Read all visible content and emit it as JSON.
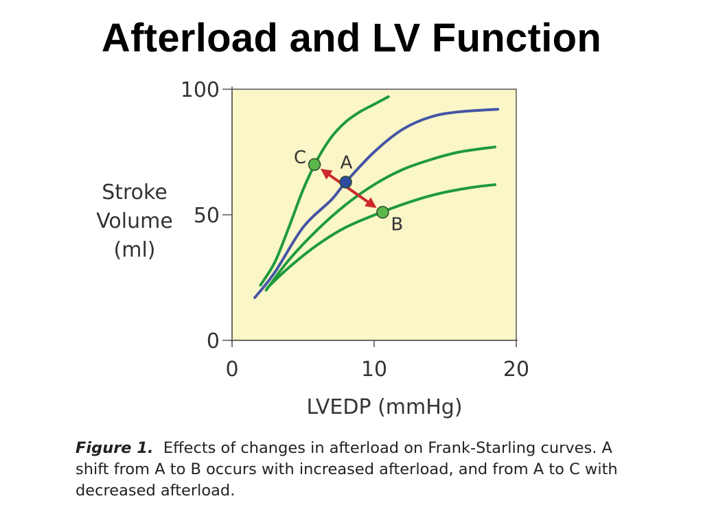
{
  "slide_title": "Afterload and LV Function",
  "chart_data": {
    "type": "line",
    "xlabel": "LVEDP (mmHg)",
    "ylabel": [
      "Stroke",
      "Volume",
      "(ml)"
    ],
    "xlim": [
      0,
      20
    ],
    "ylim": [
      0,
      100
    ],
    "x_ticks": [
      0,
      10,
      20
    ],
    "y_ticks": [
      0,
      50,
      100
    ],
    "grid": false,
    "plot_background": "#faf6c8",
    "series": [
      {
        "color": "#1e9a3c",
        "points": [
          [
            2.0,
            22
          ],
          [
            3.0,
            31
          ],
          [
            4.0,
            45
          ],
          [
            5.0,
            60
          ],
          [
            6.0,
            72
          ],
          [
            7.0,
            81
          ],
          [
            8.0,
            87
          ],
          [
            9.0,
            91
          ],
          [
            10.0,
            94
          ],
          [
            11.0,
            97
          ]
        ]
      },
      {
        "color": "#4455a5",
        "points": [
          [
            1.6,
            17
          ],
          [
            3.0,
            27
          ],
          [
            5.0,
            45
          ],
          [
            7.0,
            56
          ],
          [
            8.0,
            63
          ],
          [
            10.0,
            75
          ],
          [
            12.0,
            84
          ],
          [
            14.0,
            89
          ],
          [
            16.0,
            91
          ],
          [
            18.7,
            92
          ]
        ]
      },
      {
        "color": "#1e9a3c",
        "points": [
          [
            2.4,
            20
          ],
          [
            4.0,
            32
          ],
          [
            6.0,
            44
          ],
          [
            8.0,
            54
          ],
          [
            10.0,
            62
          ],
          [
            12.0,
            68
          ],
          [
            14.0,
            72
          ],
          [
            16.0,
            75
          ],
          [
            18.5,
            77
          ]
        ]
      },
      {
        "color": "#1e9a3c",
        "points": [
          [
            2.5,
            21
          ],
          [
            4.0,
            29
          ],
          [
            6.0,
            38
          ],
          [
            8.0,
            45
          ],
          [
            10.5,
            51
          ],
          [
            13.0,
            56
          ],
          [
            15.0,
            59
          ],
          [
            17.0,
            61
          ],
          [
            18.5,
            62
          ]
        ]
      }
    ],
    "points": [
      {
        "label": "A",
        "x": 8.0,
        "y": 63,
        "color": "#2c4aa0"
      },
      {
        "label": "B",
        "x": 10.6,
        "y": 51,
        "color": "#5cb84a"
      },
      {
        "label": "C",
        "x": 5.8,
        "y": 70,
        "color": "#5cb84a"
      }
    ],
    "arrow": {
      "from": "B",
      "to": "C",
      "color": "#cc2a2a"
    }
  },
  "caption": {
    "figure_label": "Figure 1.",
    "text": "Effects of changes in afterload on Frank-Starling curves.  A shift from A to B occurs with increased afterload, and from A to C with decreased afterload."
  }
}
